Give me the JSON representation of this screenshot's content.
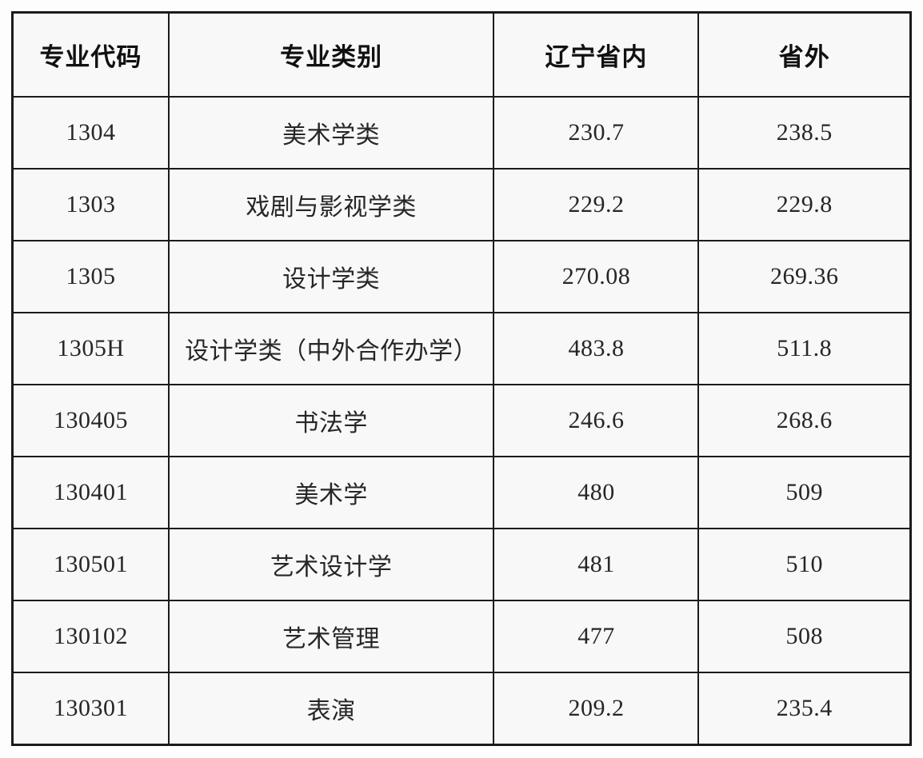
{
  "table": {
    "columns": [
      {
        "key": "code",
        "label": "专业代码"
      },
      {
        "key": "category",
        "label": "专业类别"
      },
      {
        "key": "liaoning",
        "label": "辽宁省内"
      },
      {
        "key": "outside",
        "label": "省外"
      }
    ],
    "rows": [
      {
        "code": "1304",
        "category": "美术学类",
        "liaoning": "230.7",
        "outside": "238.5"
      },
      {
        "code": "1303",
        "category": "戏剧与影视学类",
        "liaoning": "229.2",
        "outside": "229.8"
      },
      {
        "code": "1305",
        "category": "设计学类",
        "liaoning": "270.08",
        "outside": "269.36"
      },
      {
        "code": "1305H",
        "category": "设计学类（中外合作办学）",
        "liaoning": "483.8",
        "outside": "511.8"
      },
      {
        "code": "130405",
        "category": "书法学",
        "liaoning": "246.6",
        "outside": "268.6"
      },
      {
        "code": "130401",
        "category": "美术学",
        "liaoning": "480",
        "outside": "509"
      },
      {
        "code": "130501",
        "category": "艺术设计学",
        "liaoning": "481",
        "outside": "510"
      },
      {
        "code": "130102",
        "category": "艺术管理",
        "liaoning": "477",
        "outside": "508"
      },
      {
        "code": "130301",
        "category": "表演",
        "liaoning": "209.2",
        "outside": "235.4"
      }
    ]
  },
  "colors": {
    "border": "#1b1b1b",
    "cell_background": "#f8f8f8",
    "page_background": "#fdfdfd",
    "text": "#262626"
  }
}
